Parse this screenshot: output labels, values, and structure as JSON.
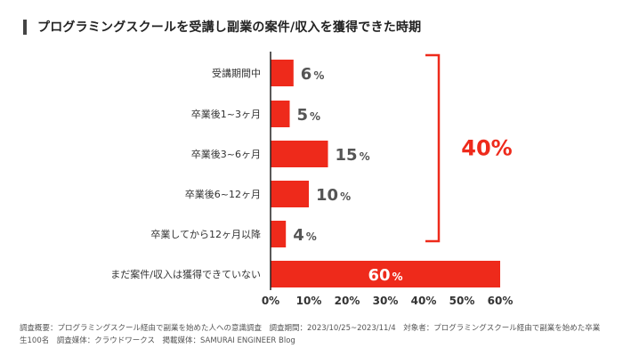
{
  "header": {
    "title": "プログラミングスクールを受講し副業の案件/収入を獲得できた時期"
  },
  "chart_data": {
    "type": "bar",
    "orientation": "horizontal",
    "categories": [
      "受講期間中",
      "卒業後1~3ヶ月",
      "卒業後3~6ヶ月",
      "卒業後6~12ヶ月",
      "卒業してから12ヶ月以降",
      "まだ案件/収入は獲得できていない"
    ],
    "values": [
      6,
      5,
      15,
      10,
      4,
      60
    ],
    "value_suffix": "%",
    "xlim": [
      0,
      60
    ],
    "xticks": [
      "0%",
      "10%",
      "20%",
      "30%",
      "40%",
      "50%",
      "60%"
    ],
    "xtick_values": [
      0,
      10,
      20,
      30,
      40,
      50,
      60
    ],
    "grid": false,
    "bar_color": "#ee2a1b",
    "label_color": "#555555",
    "inside_label_color": "#ffffff",
    "bracket": {
      "spans_categories": [
        0,
        4
      ],
      "label": "40%",
      "color": "#ee2a1b"
    }
  },
  "footnote": {
    "text": "調査概要：プログラミングスクール経由で副業を始めた人への意識調査　調査期間：2023/10/25~2023/11/4　対象者：プログラミングスクール経由で副業を始めた卒業生100名　調査媒体：クラウドワークス　掲載媒体：SAMURAI ENGINEER Blog"
  }
}
